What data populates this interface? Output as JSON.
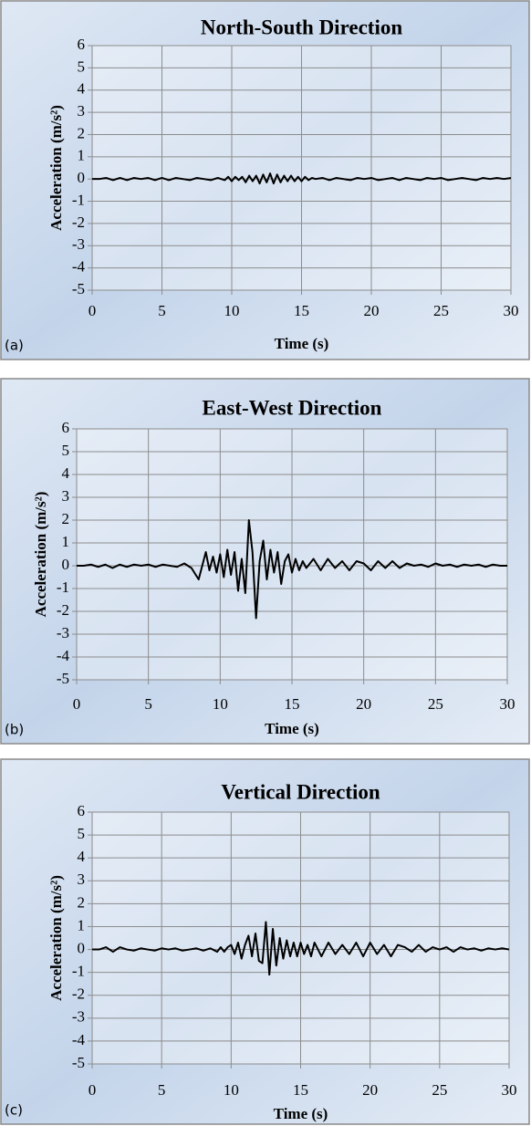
{
  "chart_data": [
    {
      "type": "line",
      "title": "North-South Direction",
      "xlabel": "Time (s)",
      "ylabel": "Acceleration (m/s²)",
      "panel_label": "(a)",
      "x": [
        0,
        0.5,
        1,
        1.5,
        2,
        2.5,
        3,
        3.5,
        4,
        4.5,
        5,
        5.5,
        6,
        6.5,
        7,
        7.5,
        8,
        8.5,
        9,
        9.25,
        9.5,
        9.75,
        10,
        10.25,
        10.5,
        10.75,
        11,
        11.25,
        11.5,
        11.75,
        12,
        12.25,
        12.5,
        12.75,
        13,
        13.25,
        13.5,
        13.75,
        14,
        14.25,
        14.5,
        14.75,
        15,
        15.25,
        15.5,
        15.75,
        16,
        16.5,
        17,
        17.5,
        18,
        18.5,
        19,
        19.5,
        20,
        20.5,
        21,
        21.5,
        22,
        22.5,
        23,
        23.5,
        24,
        24.5,
        25,
        25.5,
        26,
        26.5,
        27,
        27.5,
        28,
        28.5,
        29,
        29.5,
        30
      ],
      "values": [
        0,
        0,
        0.05,
        -0.05,
        0.05,
        -0.05,
        0.05,
        0,
        0.05,
        -0.05,
        0.05,
        -0.05,
        0.05,
        0,
        -0.05,
        0.05,
        0,
        -0.05,
        0.05,
        0,
        -0.05,
        0.1,
        -0.1,
        0.1,
        -0.05,
        0.1,
        -0.15,
        0.15,
        -0.1,
        0.15,
        -0.2,
        0.2,
        -0.15,
        0.25,
        -0.2,
        0.2,
        -0.15,
        0.15,
        -0.1,
        0.15,
        -0.1,
        0.1,
        -0.1,
        0.1,
        -0.05,
        0.05,
        0,
        0.05,
        -0.05,
        0.05,
        0,
        -0.05,
        0.05,
        0,
        0.05,
        -0.05,
        0,
        0.05,
        -0.05,
        0.05,
        0,
        -0.05,
        0.05,
        0,
        0.05,
        -0.05,
        0,
        0.05,
        0,
        -0.05,
        0.05,
        0,
        0.05,
        0,
        0.05
      ],
      "color": "#000000",
      "xlim": [
        0,
        30
      ],
      "ylim": [
        -5,
        6
      ],
      "xticks": [
        0,
        5,
        10,
        15,
        20,
        25,
        30
      ],
      "yticks": [
        -5,
        -4,
        -3,
        -2,
        -1,
        0,
        1,
        2,
        3,
        4,
        5,
        6
      ],
      "grid": true
    },
    {
      "type": "line",
      "title": "East-West Direction",
      "xlabel": "Time (s)",
      "ylabel": "Acceleration (m/s²)",
      "panel_label": "(b)",
      "x": [
        0,
        0.5,
        1,
        1.5,
        2,
        2.5,
        3,
        3.5,
        4,
        4.5,
        5,
        5.5,
        6,
        6.5,
        7,
        7.5,
        8,
        8.5,
        9,
        9.25,
        9.5,
        9.75,
        10,
        10.25,
        10.5,
        10.75,
        11,
        11.25,
        11.5,
        11.75,
        12,
        12.25,
        12.5,
        12.75,
        13,
        13.25,
        13.5,
        13.75,
        14,
        14.25,
        14.5,
        14.75,
        15,
        15.25,
        15.5,
        15.75,
        16,
        16.5,
        17,
        17.5,
        18,
        18.5,
        19,
        19.5,
        20,
        20.5,
        21,
        21.5,
        22,
        22.5,
        23,
        23.5,
        24,
        24.5,
        25,
        25.5,
        26,
        26.5,
        27,
        27.5,
        28,
        28.5,
        29,
        29.5,
        30
      ],
      "values": [
        0,
        0,
        0.05,
        -0.05,
        0.05,
        -0.1,
        0.05,
        -0.05,
        0.05,
        0,
        0.05,
        -0.05,
        0.05,
        0,
        -0.05,
        0.1,
        -0.1,
        -0.6,
        0.6,
        -0.2,
        0.4,
        -0.3,
        0.5,
        -0.5,
        0.7,
        -0.4,
        0.6,
        -1.1,
        0.3,
        -1.2,
        2.0,
        0.6,
        -2.3,
        0.2,
        1.1,
        -0.6,
        0.7,
        -0.3,
        0.6,
        -0.8,
        0.2,
        0.5,
        -0.3,
        0.3,
        -0.2,
        0.2,
        -0.1,
        0.3,
        -0.2,
        0.3,
        -0.1,
        0.2,
        -0.2,
        0.2,
        0.1,
        -0.2,
        0.2,
        -0.1,
        0.2,
        -0.1,
        0.1,
        0,
        0.05,
        -0.05,
        0.1,
        0,
        0.05,
        -0.05,
        0.05,
        0,
        0.05,
        -0.05,
        0.05,
        0,
        0
      ],
      "color": "#000000",
      "xlim": [
        0,
        30
      ],
      "ylim": [
        -5,
        6
      ],
      "xticks": [
        0,
        5,
        10,
        15,
        20,
        25,
        30
      ],
      "yticks": [
        -5,
        -4,
        -3,
        -2,
        -1,
        0,
        1,
        2,
        3,
        4,
        5,
        6
      ],
      "grid": true
    },
    {
      "type": "line",
      "title": "Vertical Direction",
      "xlabel": "Time (s)",
      "ylabel": "Acceleration (m/s²)",
      "panel_label": "(c)",
      "x": [
        0,
        0.5,
        1,
        1.5,
        2,
        2.5,
        3,
        3.5,
        4,
        4.5,
        5,
        5.5,
        6,
        6.5,
        7,
        7.5,
        8,
        8.5,
        9,
        9.25,
        9.5,
        9.75,
        10,
        10.25,
        10.5,
        10.75,
        11,
        11.25,
        11.5,
        11.75,
        12,
        12.25,
        12.5,
        12.75,
        13,
        13.25,
        13.5,
        13.75,
        14,
        14.25,
        14.5,
        14.75,
        15,
        15.25,
        15.5,
        15.75,
        16,
        16.5,
        17,
        17.5,
        18,
        18.5,
        19,
        19.5,
        20,
        20.5,
        21,
        21.5,
        22,
        22.5,
        23,
        23.5,
        24,
        24.5,
        25,
        25.5,
        26,
        26.5,
        27,
        27.5,
        28,
        28.5,
        29,
        29.5,
        30
      ],
      "values": [
        0,
        0,
        0.1,
        -0.1,
        0.1,
        0,
        -0.05,
        0.05,
        0,
        -0.05,
        0.05,
        0,
        0.05,
        -0.05,
        0,
        0.05,
        -0.05,
        0.05,
        -0.1,
        0.1,
        -0.1,
        0.1,
        0.2,
        -0.2,
        0.3,
        -0.4,
        0.2,
        0.6,
        -0.3,
        0.7,
        -0.5,
        -0.6,
        1.2,
        -1.1,
        0.9,
        -0.7,
        0.5,
        -0.4,
        0.4,
        -0.3,
        0.3,
        -0.3,
        0.3,
        -0.2,
        0.2,
        -0.3,
        0.3,
        -0.3,
        0.3,
        -0.2,
        0.2,
        -0.2,
        0.3,
        -0.3,
        0.3,
        -0.2,
        0.2,
        -0.3,
        0.2,
        0.1,
        -0.1,
        0.2,
        -0.1,
        0.1,
        0,
        0.1,
        -0.1,
        0.1,
        0,
        0.05,
        -0.05,
        0.05,
        0,
        0.05,
        0
      ],
      "color": "#000000",
      "xlim": [
        0,
        30
      ],
      "ylim": [
        -5,
        6
      ],
      "xticks": [
        0,
        5,
        10,
        15,
        20,
        25,
        30
      ],
      "yticks": [
        -5,
        -4,
        -3,
        -2,
        -1,
        0,
        1,
        2,
        3,
        4,
        5,
        6
      ],
      "grid": true
    }
  ]
}
